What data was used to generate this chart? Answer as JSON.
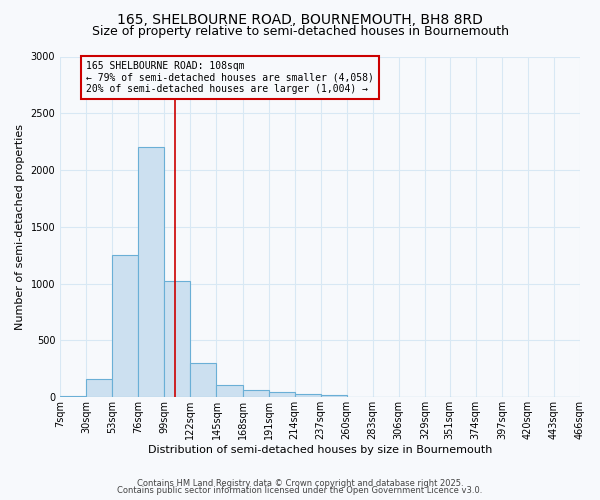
{
  "title1": "165, SHELBOURNE ROAD, BOURNEMOUTH, BH8 8RD",
  "title2": "Size of property relative to semi-detached houses in Bournemouth",
  "xlabel": "Distribution of semi-detached houses by size in Bournemouth",
  "ylabel": "Number of semi-detached properties",
  "bin_edges": [
    7,
    30,
    53,
    76,
    99,
    122,
    145,
    168,
    191,
    214,
    237,
    260,
    283,
    306,
    329,
    351,
    374,
    397,
    420,
    443,
    466
  ],
  "bar_heights": [
    10,
    160,
    1250,
    2200,
    1020,
    300,
    110,
    60,
    50,
    30,
    20,
    0,
    0,
    0,
    0,
    0,
    0,
    0,
    0,
    0
  ],
  "bar_facecolor": "#cce0f0",
  "bar_edgecolor": "#6aafd6",
  "property_size": 108,
  "red_line_color": "#cc0000",
  "annotation_title": "165 SHELBOURNE ROAD: 108sqm",
  "annotation_line2": "← 79% of semi-detached houses are smaller (4,058)",
  "annotation_line3": "20% of semi-detached houses are larger (1,004) →",
  "annotation_box_color": "#cc0000",
  "ylim": [
    0,
    3000
  ],
  "yticks": [
    0,
    500,
    1000,
    1500,
    2000,
    2500,
    3000
  ],
  "footer1": "Contains HM Land Registry data © Crown copyright and database right 2025.",
  "footer2": "Contains public sector information licensed under the Open Government Licence v3.0.",
  "bg_color": "#f7f9fc",
  "plot_bg_color": "#f7f9fc",
  "grid_color": "#d8e8f4",
  "title1_fontsize": 10,
  "title2_fontsize": 9,
  "xlabel_fontsize": 8,
  "ylabel_fontsize": 8,
  "tick_fontsize": 7,
  "annotation_fontsize": 7,
  "footer_fontsize": 6
}
